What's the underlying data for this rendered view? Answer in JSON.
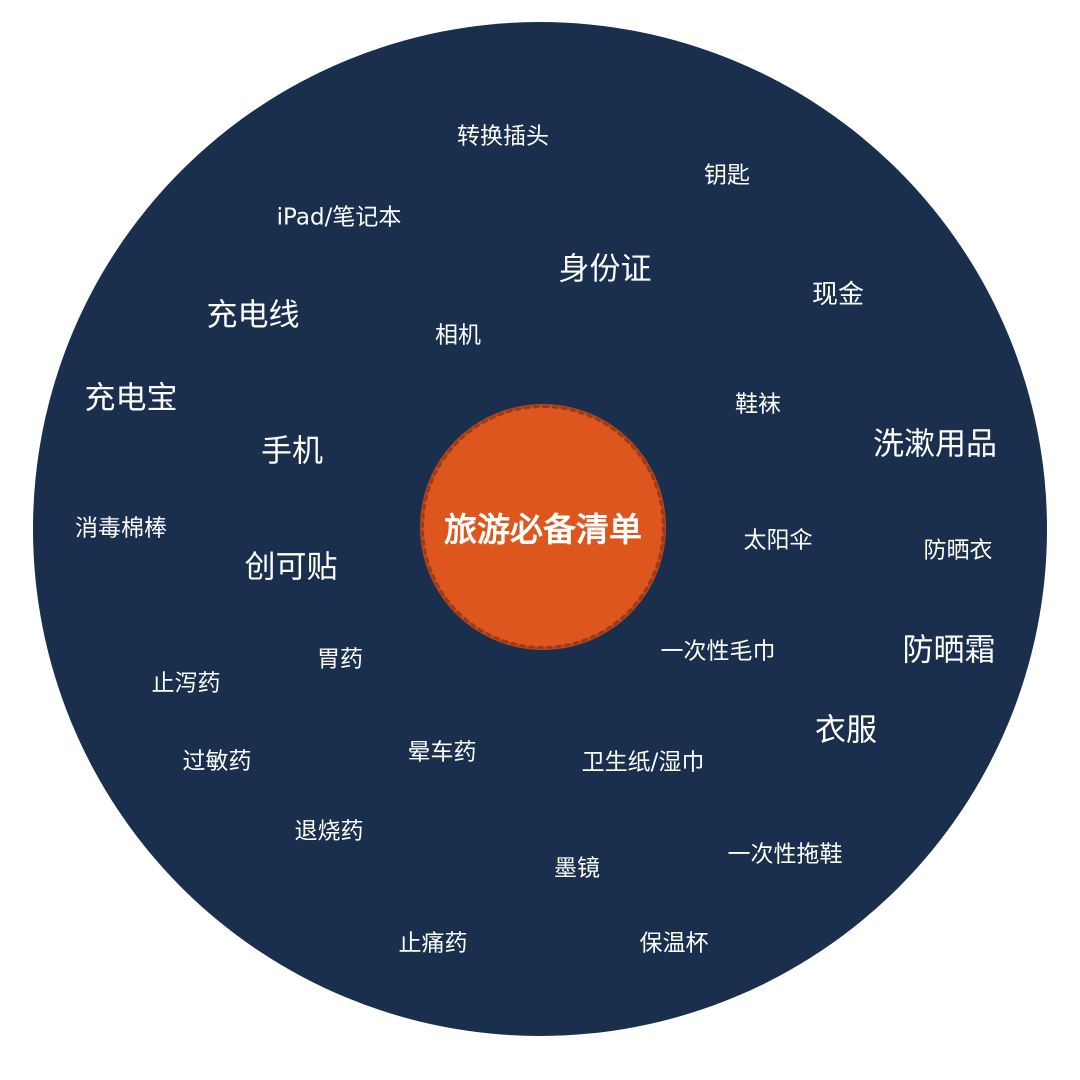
{
  "center": {
    "title": "旅游必备清单"
  },
  "items": [
    "转换插头",
    "钥匙",
    "iPad/笔记本",
    "身份证",
    "现金",
    "充电线",
    "相机",
    "充电宝",
    "鞋袜",
    "洗漱用品",
    "手机",
    "消毒棉棒",
    "太阳伞",
    "防晒衣",
    "创可贴",
    "一次性毛巾",
    "防晒霜",
    "胃药",
    "止泻药",
    "衣服",
    "过敏药",
    "晕车药",
    "卫生纸/湿巾",
    "退烧药",
    "一次性拖鞋",
    "墨镜",
    "止痛药",
    "保温杯"
  ],
  "colors": {
    "background": "#ffffff",
    "outer_circle": "#1a2f4d",
    "center_circle": "#dc561e",
    "text": "#ffffff"
  }
}
